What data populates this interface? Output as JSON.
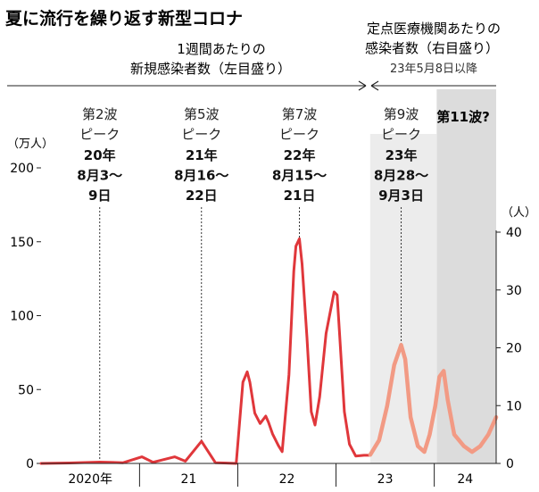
{
  "chart_data": {
    "type": "line",
    "title": "夏に流行を繰り返す新型コロナ",
    "left_axis": {
      "unit": "（万人）",
      "ylim": [
        0,
        200
      ],
      "ticks": [
        0,
        50,
        100,
        150,
        200
      ]
    },
    "right_axis": {
      "unit": "（人）",
      "ylim": [
        0,
        40
      ],
      "ticks": [
        0,
        10,
        20,
        30,
        40
      ]
    },
    "x_axis": {
      "years": [
        "2020年",
        "21",
        "22",
        "23",
        "24"
      ],
      "year_boundaries": [
        "2021-01-01",
        "2022-01-01",
        "2023-01-01",
        "2024-01-01"
      ],
      "range": [
        "2020-01-01",
        "2024-08-18"
      ]
    },
    "header_left": {
      "line1": "1週間あたりの",
      "line2": "新規感染者数（左目盛り）"
    },
    "header_right": {
      "line1": "定点医療機関あたりの",
      "line2": "感染者数（右目盛り）",
      "note": "23年5月8日以降"
    },
    "peaks": [
      {
        "wave": "第2波",
        "word": "ピーク",
        "year": "20年",
        "d1": "8月3～",
        "d2": "9日",
        "date": "2020-08-06",
        "value": 0.9,
        "axis": "left"
      },
      {
        "wave": "第5波",
        "word": "ピーク",
        "year": "21年",
        "d1": "8月16～",
        "d2": "22日",
        "date": "2021-08-19",
        "value": 15,
        "axis": "left"
      },
      {
        "wave": "第7波",
        "word": "ピーク",
        "year": "22年",
        "d1": "8月15～",
        "d2": "21日",
        "date": "2022-08-18",
        "value": 152,
        "axis": "left"
      },
      {
        "wave": "第9波",
        "word": "ピーク",
        "year": "23年",
        "d1": "8月28～",
        "d2": "9月3日",
        "date": "2023-08-31",
        "value": 20.5,
        "axis": "right"
      }
    ],
    "wave11_label": "第11波?",
    "series": [
      {
        "axis": "left",
        "color": "#e0373b",
        "points": [
          [
            "2020-01-01",
            0
          ],
          [
            "2020-04-15",
            0.3
          ],
          [
            "2020-08-06",
            0.9
          ],
          [
            "2020-11-01",
            0.5
          ],
          [
            "2021-01-10",
            4.5
          ],
          [
            "2021-02-20",
            0.8
          ],
          [
            "2021-05-12",
            4.5
          ],
          [
            "2021-06-20",
            1.5
          ],
          [
            "2021-08-19",
            15
          ],
          [
            "2021-10-10",
            0.5
          ],
          [
            "2021-12-26",
            0
          ],
          [
            "2022-01-20",
            55
          ],
          [
            "2022-02-05",
            62
          ],
          [
            "2022-02-15",
            55
          ],
          [
            "2022-03-05",
            34
          ],
          [
            "2022-03-25",
            27
          ],
          [
            "2022-04-15",
            32
          ],
          [
            "2022-04-25",
            28
          ],
          [
            "2022-05-10",
            20
          ],
          [
            "2022-06-01",
            12
          ],
          [
            "2022-06-15",
            8
          ],
          [
            "2022-07-10",
            60
          ],
          [
            "2022-07-28",
            130
          ],
          [
            "2022-08-05",
            147
          ],
          [
            "2022-08-18",
            152
          ],
          [
            "2022-08-28",
            135
          ],
          [
            "2022-09-15",
            85
          ],
          [
            "2022-10-01",
            35
          ],
          [
            "2022-10-15",
            26
          ],
          [
            "2022-11-01",
            45
          ],
          [
            "2022-11-25",
            88
          ],
          [
            "2022-12-10",
            102
          ],
          [
            "2022-12-25",
            116
          ],
          [
            "2023-01-05",
            114
          ],
          [
            "2023-01-15",
            85
          ],
          [
            "2023-02-01",
            35
          ],
          [
            "2023-02-20",
            13
          ],
          [
            "2023-03-15",
            5
          ],
          [
            "2023-04-15",
            5.5
          ],
          [
            "2023-05-07",
            5.5
          ]
        ]
      },
      {
        "axis": "right",
        "color": "#f29a84",
        "points": [
          [
            "2023-05-08",
            1.5
          ],
          [
            "2023-06-10",
            4
          ],
          [
            "2023-07-10",
            10
          ],
          [
            "2023-08-05",
            17
          ],
          [
            "2023-08-31",
            20.5
          ],
          [
            "2023-09-15",
            18
          ],
          [
            "2023-10-05",
            8
          ],
          [
            "2023-11-01",
            3
          ],
          [
            "2023-11-25",
            2
          ],
          [
            "2023-12-15",
            5
          ],
          [
            "2024-01-05",
            10
          ],
          [
            "2024-01-20",
            15
          ],
          [
            "2024-02-05",
            16
          ],
          [
            "2024-02-20",
            11
          ],
          [
            "2024-03-15",
            5
          ],
          [
            "2024-04-20",
            3
          ],
          [
            "2024-05-20",
            2
          ],
          [
            "2024-06-20",
            3
          ],
          [
            "2024-07-20",
            5
          ],
          [
            "2024-08-18",
            8
          ]
        ]
      }
    ]
  }
}
